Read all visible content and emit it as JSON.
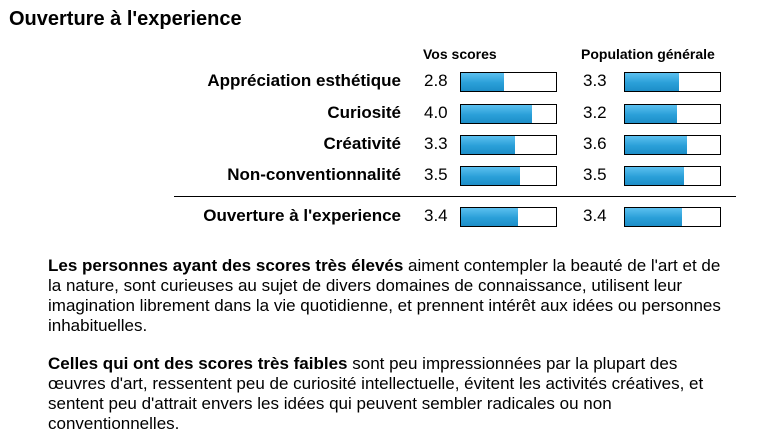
{
  "title": "Ouverture à l'experience",
  "columns": {
    "yours": "Vos scores",
    "population": "Population générale"
  },
  "rows": [
    {
      "label": "Appréciation esthétique",
      "your_score": "2.8",
      "your_fraction": 0.45,
      "pop_score": "3.3",
      "pop_fraction": 0.57
    },
    {
      "label": "Curiosité",
      "your_score": "4.0",
      "your_fraction": 0.75,
      "pop_score": "3.2",
      "pop_fraction": 0.55
    },
    {
      "label": "Créativité",
      "your_score": "3.3",
      "your_fraction": 0.57,
      "pop_score": "3.6",
      "pop_fraction": 0.65
    },
    {
      "label": "Non-conventionnalité",
      "your_score": "3.5",
      "your_fraction": 0.62,
      "pop_score": "3.5",
      "pop_fraction": 0.62
    }
  ],
  "total": {
    "label": "Ouverture à l'experience",
    "your_score": "3.4",
    "your_fraction": 0.6,
    "pop_score": "3.4",
    "pop_fraction": 0.6
  },
  "paragraphs": [
    {
      "bold": "Les personnes ayant des scores très élevés",
      "text": " aiment contempler la beauté de l'art et de la nature, sont curieuses au sujet de divers domaines de connaissance, utilisent leur imagination librement dans la vie quotidienne, et prennent intérêt aux idées ou personnes inhabituelles."
    },
    {
      "bold": "Celles qui ont des scores très faibles",
      "text": " sont peu impressionnées par la plupart des œuvres d'art, ressentent peu de curiosité intellectuelle, évitent les activités créatives, et sentent peu d'attrait envers les idées qui peuvent sembler radicales ou non conventionnelles."
    }
  ],
  "colors": {
    "bar_fill": "#2a9fd8",
    "bar_border": "#000000"
  }
}
